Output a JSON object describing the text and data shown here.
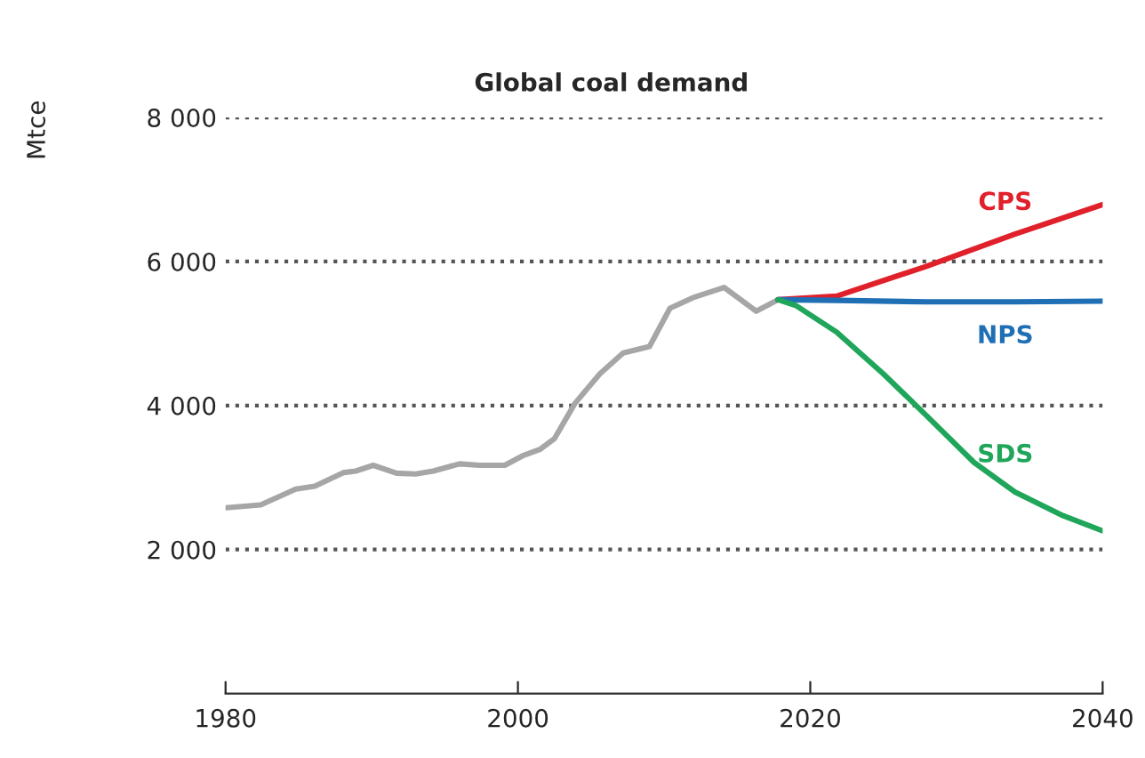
{
  "chart_data": {
    "type": "line",
    "title": "Global coal demand",
    "ylabel": "Mtce",
    "xlim": [
      1980,
      2040
    ],
    "xticks": [
      1980,
      2000,
      2020,
      2040
    ],
    "ylim": [
      0,
      8000
    ],
    "yticks": [
      {
        "value": 2000,
        "label": "2 000"
      },
      {
        "value": 4000,
        "label": "4 000"
      },
      {
        "value": 6000,
        "label": "6 000"
      },
      {
        "value": 8000,
        "label": "8 000"
      }
    ],
    "grid": "y",
    "line_style": "solid",
    "marker": "none",
    "series": [
      {
        "color": "#a6a6a6",
        "x": [
          1980,
          1982.4,
          1984.8,
          1986.1,
          1988.1,
          1988.9,
          1990.1,
          1991.7,
          1993,
          1994.2,
          1996,
          1997.4,
          1999.1,
          2000.3,
          2001.5,
          2002.5,
          2003.9,
          2005.6,
          2007.2,
          2009,
          2010.4,
          2012,
          2014.1,
          2016.3,
          2017.8
        ],
        "values": [
          2580,
          2620,
          2840,
          2880,
          3070,
          3090,
          3170,
          3060,
          3050,
          3090,
          3190,
          3170,
          3170,
          3300,
          3390,
          3540,
          4030,
          4440,
          4730,
          4820,
          5350,
          5500,
          5640,
          5310,
          5470
        ]
      },
      {
        "name": "CPS",
        "color": "#e0202a",
        "x": [
          2017.8,
          2021.8,
          2027.9,
          2034,
          2040
        ],
        "values": [
          5470,
          5520,
          5930,
          6380,
          6790
        ]
      },
      {
        "name": "NPS",
        "color": "#1f6fb5",
        "x": [
          2017.8,
          2021.8,
          2027.9,
          2034,
          2040
        ],
        "values": [
          5470,
          5460,
          5440,
          5440,
          5450
        ]
      },
      {
        "name": "SDS",
        "color": "#1fa65a",
        "x": [
          2017.8,
          2019,
          2021.8,
          2025,
          2027.9,
          2031.2,
          2034,
          2037.3,
          2040
        ],
        "values": [
          5470,
          5390,
          5020,
          4440,
          3870,
          3210,
          2800,
          2470,
          2260
        ]
      }
    ]
  }
}
